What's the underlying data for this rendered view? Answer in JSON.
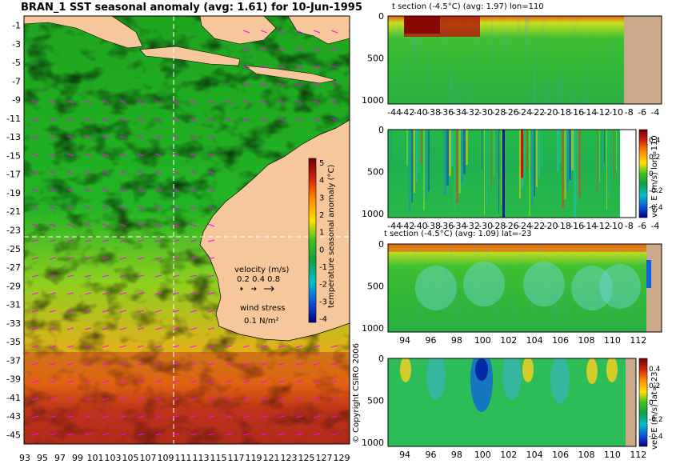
{
  "main_map": {
    "title": "BRAN_1 SST seasonal anomaly (avg: 1.61) for 10-Jun-1995",
    "y_ticks": [
      "-1",
      "-3",
      "-5",
      "-7",
      "-9",
      "-11",
      "-13",
      "-15",
      "-17",
      "-19",
      "-21",
      "-23",
      "-25",
      "-27",
      "-29",
      "-31",
      "-33",
      "-35",
      "-37",
      "-39",
      "-41",
      "-43",
      "-45"
    ],
    "x_ticks": [
      "93",
      "95",
      "97",
      "99",
      "101",
      "103",
      "105",
      "107",
      "109",
      "111",
      "113",
      "115",
      "117",
      "119",
      "121",
      "123",
      "125",
      "127",
      "129"
    ],
    "colorbar_ticks": [
      "5",
      "4",
      "3",
      "2",
      "1",
      "0",
      "-1",
      "-2",
      "-3",
      "-4"
    ],
    "colorbar_label": "temperature seasonal anomaly (°C)",
    "velocity_legend": {
      "title": "velocity (m/s)",
      "values": "0.2 0.4 0.8"
    },
    "wind_legend": {
      "title": "wind stress",
      "value": "0.1 N/m²"
    },
    "colors": {
      "ocean_cool": "#1aa01a",
      "ocean_warm": "#c83a14",
      "land": "#f7c79c",
      "vectors": "#ff00ff",
      "crosshair": "#ffffff"
    }
  },
  "copyright": "© Copyright CSIRO 2006",
  "panels": {
    "temp_lon": {
      "title": "t section (-4.5°C) (avg: 1.97) lon=110",
      "y_ticks": [
        "0",
        "500",
        "1000"
      ],
      "x_ticks": [
        "-44",
        "-42",
        "-40",
        "-38",
        "-36",
        "-34",
        "-32",
        "-30",
        "-28",
        "-26",
        "-24",
        "-22",
        "-20",
        "-18",
        "-16",
        "-14",
        "-12",
        "-10",
        "-8",
        "-6",
        "-4"
      ]
    },
    "vel_lon": {
      "side_label": "vel. E (m/s) lon=110",
      "y_ticks": [
        "0",
        "500",
        "1000"
      ],
      "x_ticks": [
        "-44",
        "-42",
        "-40",
        "-38",
        "-36",
        "-34",
        "-32",
        "-30",
        "-28",
        "-26",
        "-24",
        "-22",
        "-20",
        "-18",
        "-16",
        "-14",
        "-12",
        "-10",
        "-8",
        "-6",
        "-4"
      ],
      "colorbar_ticks": [
        "0.4",
        "0.2",
        "0",
        "-0.2",
        "-0.4"
      ]
    },
    "temp_lat": {
      "title": "t section (-4.5°C) (avg: 1.09) lat=-23",
      "y_ticks": [
        "0",
        "500",
        "1000"
      ],
      "x_ticks": [
        "94",
        "96",
        "98",
        "100",
        "102",
        "104",
        "106",
        "108",
        "110",
        "112"
      ]
    },
    "vel_lat": {
      "side_label": "vel. E (m/s) lat=-23",
      "y_ticks": [
        "0",
        "500",
        "1000"
      ],
      "x_ticks": [
        "94",
        "96",
        "98",
        "100",
        "102",
        "104",
        "106",
        "108",
        "110",
        "112"
      ],
      "colorbar_ticks": [
        "0.4",
        "0.2",
        "0",
        "-0.2",
        "-0.4"
      ]
    }
  },
  "chart_data": [
    {
      "type": "heatmap",
      "title": "BRAN_1 SST seasonal anomaly (avg: 1.61) for 10-Jun-1995",
      "xlim": [
        93,
        130
      ],
      "ylim": [
        -45,
        0
      ],
      "colorbar_range": [
        -4,
        5
      ],
      "colorbar_label": "temperature seasonal anomaly (°C)",
      "crosshair": {
        "lon": 110,
        "lat": -23
      }
    },
    {
      "type": "heatmap",
      "title": "t section (-4.5°C) (avg: 1.97) lon=110",
      "xlim": [
        -45,
        -3
      ],
      "ylim": [
        1050,
        0
      ]
    },
    {
      "type": "heatmap",
      "side_label": "vel. E (m/s) lon=110",
      "xlim": [
        -45,
        -3
      ],
      "ylim": [
        1050,
        0
      ],
      "colorbar_range": [
        -0.5,
        0.5
      ]
    },
    {
      "type": "heatmap",
      "title": "t section (-4.5°C) (avg: 1.09) lat=-23",
      "xlim": [
        92.7,
        113.8
      ],
      "ylim": [
        1050,
        0
      ]
    },
    {
      "type": "heatmap",
      "side_label": "vel. E (m/s) lat=-23",
      "xlim": [
        92.7,
        113.8
      ],
      "ylim": [
        1050,
        0
      ],
      "colorbar_range": [
        -0.5,
        0.5
      ]
    }
  ]
}
